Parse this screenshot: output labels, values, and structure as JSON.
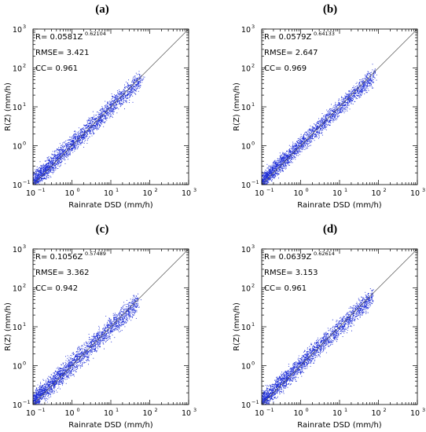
{
  "chart_data": [
    {
      "type": "scatter",
      "panel": "(a)",
      "xlabel": "Rainrate DSD (mm/h)",
      "ylabel": "R(Z) (mm/h)",
      "xscale": "log",
      "yscale": "log",
      "xlim": [
        0.1,
        1000
      ],
      "ylim": [
        0.1,
        1000
      ],
      "x_ticks": [
        "10",
        "10",
        "10",
        "10",
        "10"
      ],
      "x_tick_exponents": [
        "−1",
        "0",
        "1",
        "2",
        "3"
      ],
      "y_ticks": [
        "10",
        "10",
        "10",
        "10",
        "10"
      ],
      "y_tick_exponents": [
        "−1",
        "0",
        "1",
        "2",
        "3"
      ],
      "stats": {
        "r_text": "R= 0.0581Z",
        "r_exponent": "0.62104",
        "rmse_text": "RMSE=    3.421",
        "cc_text": "CC= 0.961"
      },
      "fit": {
        "a": 0.0581,
        "b": 0.62104
      },
      "reference_line": "1:1",
      "point_color": "#1f2fd6",
      "spread": 0.36,
      "x_range": [
        0.1,
        60
      ]
    },
    {
      "type": "scatter",
      "panel": "(b)",
      "xlabel": "Rainrate DSD (mm/h)",
      "ylabel": "R(Z) (mm/h)",
      "xscale": "log",
      "yscale": "log",
      "xlim": [
        0.1,
        1000
      ],
      "ylim": [
        0.1,
        1000
      ],
      "x_ticks": [
        "10",
        "10",
        "10",
        "10",
        "10"
      ],
      "x_tick_exponents": [
        "−1",
        "0",
        "1",
        "2",
        "3"
      ],
      "y_ticks": [
        "10",
        "10",
        "10",
        "10",
        "10"
      ],
      "y_tick_exponents": [
        "−1",
        "0",
        "1",
        "2",
        "3"
      ],
      "stats": {
        "r_text": "R= 0.0579Z",
        "r_exponent": "0.64133",
        "rmse_text": "RMSE=    2.647",
        "cc_text": "CC= 0.969"
      },
      "fit": {
        "a": 0.0579,
        "b": 0.64133
      },
      "reference_line": "1:1",
      "point_color": "#1f2fd6",
      "spread": 0.3,
      "x_range": [
        0.1,
        80
      ]
    },
    {
      "type": "scatter",
      "panel": "(c)",
      "xlabel": "Rainrate DSD (mm/h)",
      "ylabel": "R(Z) (mm/h)",
      "xscale": "log",
      "yscale": "log",
      "xlim": [
        0.1,
        1000
      ],
      "ylim": [
        0.1,
        1000
      ],
      "x_ticks": [
        "10",
        "10",
        "10",
        "10",
        "10"
      ],
      "x_tick_exponents": [
        "−1",
        "0",
        "1",
        "2",
        "3"
      ],
      "y_ticks": [
        "10",
        "10",
        "10",
        "10",
        "10"
      ],
      "y_tick_exponents": [
        "−1",
        "0",
        "1",
        "2",
        "3"
      ],
      "stats": {
        "r_text": "R= 0.1056Z",
        "r_exponent": "0.57489",
        "rmse_text": "RMSE=    3.362",
        "cc_text": "CC= 0.942"
      },
      "fit": {
        "a": 0.1056,
        "b": 0.57489
      },
      "reference_line": "1:1",
      "point_color": "#1f2fd6",
      "spread": 0.45,
      "x_range": [
        0.1,
        50
      ]
    },
    {
      "type": "scatter",
      "panel": "(d)",
      "xlabel": "Rainrate DSD (mm/h)",
      "ylabel": "R(Z) (mm/h)",
      "xscale": "log",
      "yscale": "log",
      "xlim": [
        0.1,
        1000
      ],
      "ylim": [
        0.1,
        1000
      ],
      "x_ticks": [
        "10",
        "10",
        "10",
        "10",
        "10"
      ],
      "x_tick_exponents": [
        "−1",
        "0",
        "1",
        "2",
        "3"
      ],
      "y_ticks": [
        "10",
        "10",
        "10",
        "10",
        "10"
      ],
      "y_tick_exponents": [
        "−1",
        "0",
        "1",
        "2",
        "3"
      ],
      "stats": {
        "r_text": "R= 0.0639Z",
        "r_exponent": "0.62614",
        "rmse_text": "RMSE=    3.153",
        "cc_text": "CC= 0.961"
      },
      "fit": {
        "a": 0.0639,
        "b": 0.62614
      },
      "reference_line": "1:1",
      "point_color": "#1f2fd6",
      "spread": 0.36,
      "x_range": [
        0.1,
        70
      ]
    }
  ]
}
